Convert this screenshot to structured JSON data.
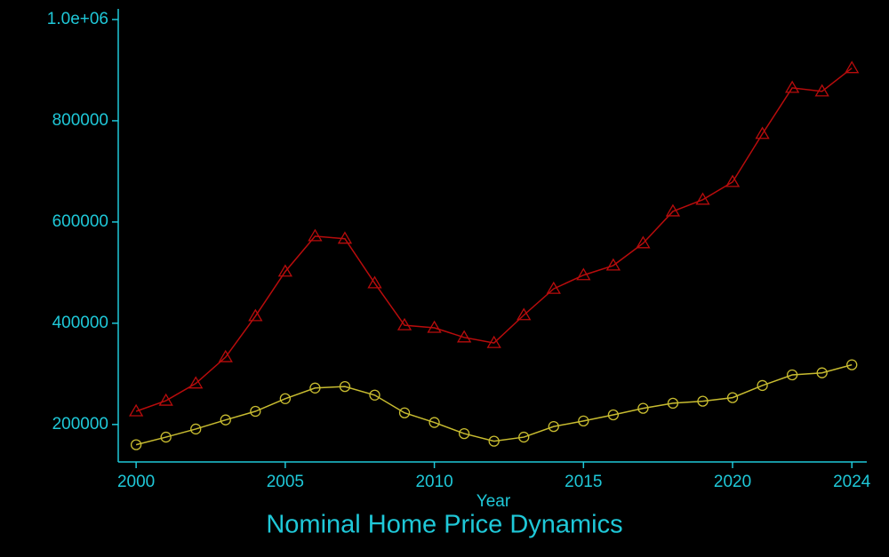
{
  "chart_data": {
    "type": "line",
    "title": "Nominal Home Price Dynamics",
    "x_label": "Year",
    "x": [
      2000,
      2001,
      2002,
      2003,
      2004,
      2005,
      2006,
      2007,
      2008,
      2009,
      2010,
      2011,
      2012,
      2013,
      2014,
      2015,
      2016,
      2017,
      2018,
      2019,
      2020,
      2021,
      2022,
      2023,
      2024
    ],
    "series": [
      {
        "color": "#b80c0c",
        "marker": "triangle",
        "values": [
          226000,
          247000,
          281000,
          333000,
          414000,
          502000,
          572000,
          567000,
          479000,
          396000,
          391000,
          372000,
          361000,
          416000,
          468000,
          495000,
          514000,
          558000,
          621000,
          644000,
          679000,
          774000,
          865000,
          858000,
          904000
        ]
      },
      {
        "color": "#c8bc30",
        "marker": "circle",
        "values": [
          160000,
          175000,
          191000,
          209000,
          226000,
          251000,
          272000,
          275000,
          258000,
          223000,
          204000,
          182000,
          167000,
          175000,
          196000,
          207000,
          219000,
          232000,
          242000,
          246000,
          253000,
          277000,
          298000,
          302000,
          318000
        ]
      }
    ],
    "xlim": [
      1999.4,
      2024.5
    ],
    "xticks": [
      2000,
      2005,
      2010,
      2015,
      2020,
      2024
    ],
    "ylim": [
      126000,
      1021000
    ],
    "yticks": [
      200000,
      400000,
      600000,
      800000,
      {
        "value": 1000000,
        "label": "1.0e+06"
      }
    ],
    "axis_color": "#1fc8d8",
    "grid": false
  }
}
